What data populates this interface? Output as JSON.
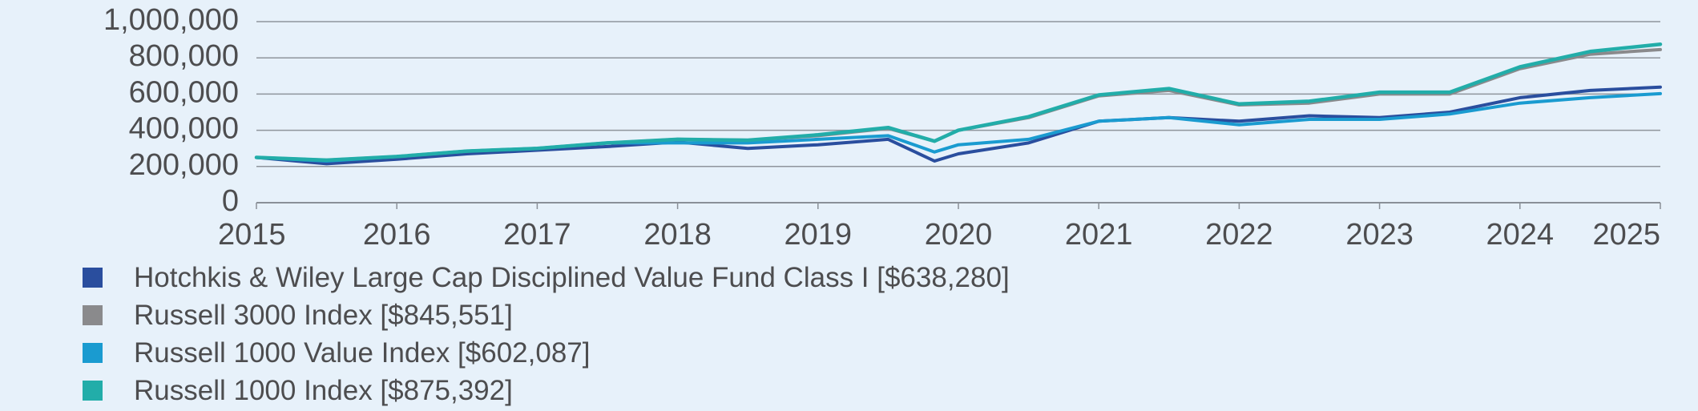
{
  "chart_data": {
    "type": "line",
    "title": "",
    "xlabel": "",
    "ylabel": "",
    "ylim": [
      0,
      1000000
    ],
    "xlim": [
      2015,
      2025
    ],
    "yticks": [
      0,
      200000,
      400000,
      600000,
      800000,
      1000000
    ],
    "ytick_labels": [
      "0",
      "200,000",
      "400,000",
      "600,000",
      "800,000",
      "1,000,000"
    ],
    "xticks": [
      "2015",
      "2016",
      "2017",
      "2018",
      "2019",
      "2020",
      "2021",
      "2022",
      "2023",
      "2024",
      "2025"
    ],
    "grid": "horizontal",
    "legend_position": "bottom-left",
    "x": [
      2015.0,
      2015.5,
      2016.0,
      2016.5,
      2017.0,
      2017.5,
      2018.0,
      2018.5,
      2019.0,
      2019.5,
      2019.83,
      2020.0,
      2020.5,
      2021.0,
      2021.5,
      2022.0,
      2022.5,
      2023.0,
      2023.5,
      2024.0,
      2024.5,
      2025.0
    ],
    "series": [
      {
        "name": "Hotchkis & Wiley Large Cap Disciplined Value Fund Class I [$638,280]",
        "color": "#2a4e9e",
        "values": [
          250000,
          215000,
          240000,
          270000,
          290000,
          310000,
          335000,
          300000,
          320000,
          350000,
          230000,
          270000,
          330000,
          450000,
          470000,
          450000,
          480000,
          470000,
          500000,
          580000,
          620000,
          638280
        ]
      },
      {
        "name": "Russell 3000 Index [$845,551]",
        "color": "#8a8a8c",
        "values": [
          250000,
          235000,
          255000,
          285000,
          300000,
          330000,
          350000,
          345000,
          370000,
          410000,
          340000,
          400000,
          470000,
          590000,
          620000,
          540000,
          550000,
          600000,
          600000,
          740000,
          820000,
          845551
        ]
      },
      {
        "name": "Russell 1000 Value Index [$602,087]",
        "color": "#1a9bd0",
        "values": [
          250000,
          230000,
          255000,
          285000,
          300000,
          330000,
          330000,
          330000,
          350000,
          370000,
          280000,
          320000,
          350000,
          450000,
          470000,
          430000,
          460000,
          460000,
          490000,
          550000,
          580000,
          602087
        ]
      },
      {
        "name": "Russell 1000 Index [$875,392]",
        "color": "#22ada9",
        "values": [
          250000,
          235000,
          255000,
          285000,
          300000,
          330000,
          350000,
          345000,
          375000,
          415000,
          340000,
          400000,
          475000,
          595000,
          630000,
          545000,
          560000,
          610000,
          610000,
          750000,
          835000,
          875392
        ]
      }
    ]
  }
}
